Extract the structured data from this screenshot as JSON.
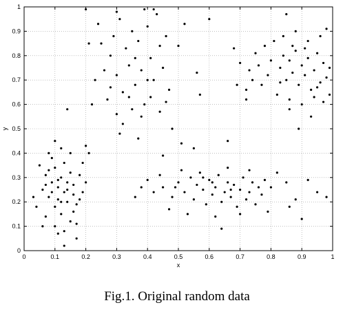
{
  "chart_data": {
    "type": "scatter",
    "title": "",
    "xlabel": "x",
    "ylabel": "y",
    "xlim": [
      0,
      1
    ],
    "ylim": [
      0,
      1
    ],
    "grid": true,
    "xticks": [
      "0",
      "0.1",
      "0.2",
      "0.3",
      "0.4",
      "0.5",
      "0.6",
      "0.7",
      "0.8",
      "0.9",
      "1"
    ],
    "yticks": [
      "0",
      "0.1",
      "0.2",
      "0.3",
      "0.4",
      "0.5",
      "0.6",
      "0.7",
      "0.8",
      "0.9",
      "1"
    ],
    "series": [
      {
        "points": [
          [
            0.06,
            0.25
          ],
          [
            0.07,
            0.31
          ],
          [
            0.08,
            0.22
          ],
          [
            0.09,
            0.28
          ],
          [
            0.1,
            0.18
          ],
          [
            0.1,
            0.34
          ],
          [
            0.11,
            0.26
          ],
          [
            0.11,
            0.21
          ],
          [
            0.12,
            0.3
          ],
          [
            0.12,
            0.15
          ],
          [
            0.13,
            0.24
          ],
          [
            0.13,
            0.36
          ],
          [
            0.14,
            0.2
          ],
          [
            0.14,
            0.28
          ],
          [
            0.15,
            0.32
          ],
          [
            0.15,
            0.12
          ],
          [
            0.16,
            0.23
          ],
          [
            0.16,
            0.27
          ],
          [
            0.17,
            0.19
          ],
          [
            0.18,
            0.31
          ],
          [
            0.05,
            0.35
          ],
          [
            0.07,
            0.14
          ],
          [
            0.09,
            0.38
          ],
          [
            0.1,
            0.1
          ],
          [
            0.12,
            0.42
          ],
          [
            0.13,
            0.08
          ],
          [
            0.15,
            0.4
          ],
          [
            0.17,
            0.11
          ],
          [
            0.19,
            0.24
          ],
          [
            0.2,
            0.28
          ],
          [
            0.04,
            0.18
          ],
          [
            0.03,
            0.22
          ],
          [
            0.08,
            0.33
          ],
          [
            0.11,
            0.29
          ],
          [
            0.14,
            0.25
          ],
          [
            0.16,
            0.16
          ],
          [
            0.18,
            0.21
          ],
          [
            0.09,
            0.24
          ],
          [
            0.12,
            0.2
          ],
          [
            0.13,
            0.02
          ],
          [
            0.14,
            0.58
          ],
          [
            0.1,
            0.45
          ],
          [
            0.08,
            0.4
          ],
          [
            0.21,
            0.4
          ],
          [
            0.2,
            0.43
          ],
          [
            0.19,
            0.36
          ],
          [
            0.06,
            0.1
          ],
          [
            0.11,
            0.07
          ],
          [
            0.17,
            0.05
          ],
          [
            0.07,
            0.27
          ],
          [
            0.45,
            0.26
          ],
          [
            0.48,
            0.22
          ],
          [
            0.5,
            0.28
          ],
          [
            0.52,
            0.24
          ],
          [
            0.54,
            0.3
          ],
          [
            0.55,
            0.21
          ],
          [
            0.56,
            0.27
          ],
          [
            0.58,
            0.25
          ],
          [
            0.59,
            0.19
          ],
          [
            0.6,
            0.29
          ],
          [
            0.61,
            0.23
          ],
          [
            0.62,
            0.26
          ],
          [
            0.63,
            0.31
          ],
          [
            0.64,
            0.2
          ],
          [
            0.65,
            0.24
          ],
          [
            0.66,
            0.28
          ],
          [
            0.67,
            0.22
          ],
          [
            0.68,
            0.27
          ],
          [
            0.69,
            0.18
          ],
          [
            0.7,
            0.25
          ],
          [
            0.71,
            0.3
          ],
          [
            0.72,
            0.21
          ],
          [
            0.73,
            0.24
          ],
          [
            0.74,
            0.28
          ],
          [
            0.75,
            0.19
          ],
          [
            0.76,
            0.26
          ],
          [
            0.77,
            0.23
          ],
          [
            0.47,
            0.17
          ],
          [
            0.51,
            0.33
          ],
          [
            0.53,
            0.15
          ],
          [
            0.57,
            0.32
          ],
          [
            0.62,
            0.14
          ],
          [
            0.64,
            0.09
          ],
          [
            0.66,
            0.34
          ],
          [
            0.7,
            0.15
          ],
          [
            0.73,
            0.33
          ],
          [
            0.42,
            0.24
          ],
          [
            0.4,
            0.29
          ],
          [
            0.38,
            0.26
          ],
          [
            0.36,
            0.22
          ],
          [
            0.44,
            0.31
          ],
          [
            0.49,
            0.26
          ],
          [
            0.58,
            0.3
          ],
          [
            0.61,
            0.28
          ],
          [
            0.67,
            0.25
          ],
          [
            0.79,
            0.16
          ],
          [
            0.78,
            0.29
          ],
          [
            0.82,
            0.32
          ],
          [
            0.85,
            0.28
          ],
          [
            0.88,
            0.21
          ],
          [
            0.92,
            0.29
          ],
          [
            0.95,
            0.24
          ],
          [
            0.98,
            0.22
          ],
          [
            0.9,
            0.13
          ],
          [
            0.86,
            0.18
          ],
          [
            0.8,
            0.26
          ],
          [
            0.55,
            0.42
          ],
          [
            0.66,
            0.45
          ],
          [
            0.45,
            0.39
          ],
          [
            0.51,
            0.44
          ],
          [
            0.83,
            0.75
          ],
          [
            0.84,
            0.8
          ],
          [
            0.85,
            0.7
          ],
          [
            0.86,
            0.78
          ],
          [
            0.87,
            0.73
          ],
          [
            0.88,
            0.82
          ],
          [
            0.89,
            0.68
          ],
          [
            0.9,
            0.76
          ],
          [
            0.91,
            0.72
          ],
          [
            0.92,
            0.79
          ],
          [
            0.93,
            0.66
          ],
          [
            0.94,
            0.74
          ],
          [
            0.95,
            0.81
          ],
          [
            0.96,
            0.69
          ],
          [
            0.97,
            0.77
          ],
          [
            0.98,
            0.71
          ],
          [
            0.99,
            0.75
          ],
          [
            0.8,
            0.78
          ],
          [
            0.79,
            0.72
          ],
          [
            0.78,
            0.84
          ],
          [
            0.77,
            0.68
          ],
          [
            0.76,
            0.76
          ],
          [
            0.75,
            0.81
          ],
          [
            0.74,
            0.7
          ],
          [
            0.73,
            0.74
          ],
          [
            0.72,
            0.66
          ],
          [
            0.81,
            0.86
          ],
          [
            0.82,
            0.64
          ],
          [
            0.84,
            0.88
          ],
          [
            0.86,
            0.62
          ],
          [
            0.88,
            0.9
          ],
          [
            0.9,
            0.6
          ],
          [
            0.92,
            0.86
          ],
          [
            0.94,
            0.63
          ],
          [
            0.96,
            0.88
          ],
          [
            0.97,
            0.61
          ],
          [
            0.98,
            0.91
          ],
          [
            0.89,
            0.5
          ],
          [
            0.85,
            0.97
          ],
          [
            0.7,
            0.77
          ],
          [
            0.69,
            0.68
          ],
          [
            0.68,
            0.83
          ],
          [
            0.72,
            0.62
          ],
          [
            0.86,
            0.58
          ],
          [
            0.93,
            0.55
          ],
          [
            0.99,
            0.64
          ],
          [
            0.87,
            0.84
          ],
          [
            0.83,
            0.69
          ],
          [
            0.91,
            0.83
          ],
          [
            0.95,
            0.67
          ],
          [
            0.28,
            0.8
          ],
          [
            0.29,
            0.88
          ],
          [
            0.3,
            0.72
          ],
          [
            0.31,
            0.95
          ],
          [
            0.32,
            0.65
          ],
          [
            0.33,
            0.83
          ],
          [
            0.34,
            0.76
          ],
          [
            0.35,
            0.9
          ],
          [
            0.36,
            0.68
          ],
          [
            0.37,
            0.86
          ],
          [
            0.38,
            0.74
          ],
          [
            0.39,
            0.6
          ],
          [
            0.4,
            0.92
          ],
          [
            0.41,
            0.79
          ],
          [
            0.42,
            0.7
          ],
          [
            0.43,
            0.97
          ],
          [
            0.44,
            0.84
          ],
          [
            0.45,
            0.75
          ],
          [
            0.46,
            0.88
          ],
          [
            0.47,
            0.66
          ],
          [
            0.27,
            0.62
          ],
          [
            0.26,
            0.74
          ],
          [
            0.25,
            0.85
          ],
          [
            0.24,
            0.93
          ],
          [
            0.3,
            0.56
          ],
          [
            0.32,
            0.52
          ],
          [
            0.35,
            0.58
          ],
          [
            0.38,
            0.55
          ],
          [
            0.41,
            0.63
          ],
          [
            0.44,
            0.57
          ],
          [
            0.3,
            0.98
          ],
          [
            0.39,
            0.99
          ],
          [
            0.42,
            0.99
          ],
          [
            0.22,
            0.6
          ],
          [
            0.21,
            0.85
          ],
          [
            0.2,
            0.99
          ],
          [
            0.23,
            0.7
          ],
          [
            0.31,
            0.48
          ],
          [
            0.37,
            0.46
          ],
          [
            0.48,
            0.5
          ],
          [
            0.5,
            0.84
          ],
          [
            0.52,
            0.93
          ],
          [
            0.56,
            0.73
          ],
          [
            0.57,
            0.64
          ],
          [
            0.6,
            0.95
          ],
          [
            0.34,
            0.63
          ],
          [
            0.36,
            0.79
          ],
          [
            0.4,
            0.7
          ],
          [
            0.28,
            0.67
          ],
          [
            0.46,
            0.61
          ]
        ]
      }
    ]
  },
  "caption": "Fig.1. Original random data"
}
